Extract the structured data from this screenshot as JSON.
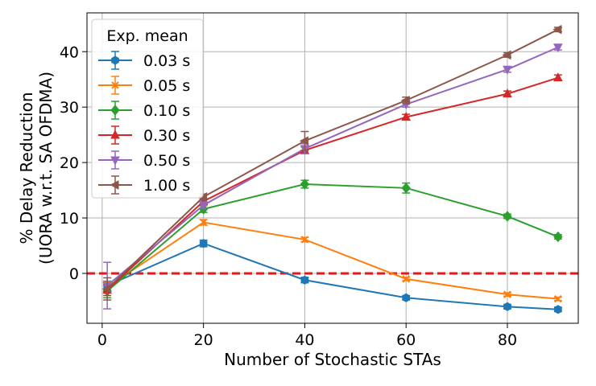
{
  "chart_data": {
    "type": "line",
    "title": "",
    "xlabel": "Number of Stochastic STAs",
    "ylabel_lines": [
      "% Delay Reduction",
      "(UORA w.r.t. SA OFDMA)"
    ],
    "xlim": [
      -3,
      94
    ],
    "ylim": [
      -9,
      47
    ],
    "xticks": [
      0,
      20,
      40,
      60,
      80
    ],
    "yticks": [
      0,
      10,
      20,
      30,
      40
    ],
    "grid": true,
    "reference_line": {
      "y": 0,
      "color": "#e5191c",
      "style": "dashed"
    },
    "legend": {
      "title": "Exp. mean",
      "location": "top-left"
    },
    "x": [
      1,
      20,
      40,
      60,
      80,
      90
    ],
    "series": [
      {
        "name": "0.03 s",
        "color": "#1f77b4",
        "marker": "hexagon",
        "values": [
          -2.2,
          5.4,
          -1.2,
          -4.4,
          -6.0,
          -6.5
        ],
        "errors": [
          0.8,
          0.6,
          0.5,
          0.4,
          0.4,
          0.4
        ]
      },
      {
        "name": "0.05 s",
        "color": "#ff7f0e",
        "marker": "x",
        "values": [
          -2.5,
          9.2,
          6.1,
          -1.0,
          -3.8,
          -4.6
        ],
        "errors": [
          1.0,
          0.5,
          0.4,
          0.3,
          0.3,
          0.3
        ]
      },
      {
        "name": "0.10 s",
        "color": "#2ca02c",
        "marker": "diamond",
        "values": [
          -3.2,
          11.6,
          16.1,
          15.4,
          10.3,
          6.6
        ],
        "errors": [
          1.2,
          0.6,
          0.7,
          0.9,
          0.4,
          0.4
        ]
      },
      {
        "name": "0.30 s",
        "color": "#d62728",
        "marker": "triangle-up",
        "values": [
          -3.0,
          13.0,
          22.2,
          28.2,
          32.4,
          35.3
        ],
        "errors": [
          1.0,
          0.5,
          0.6,
          0.5,
          0.5,
          0.5
        ]
      },
      {
        "name": "0.50 s",
        "color": "#9467bd",
        "marker": "triangle-down",
        "values": [
          -2.2,
          12.3,
          22.5,
          30.5,
          36.8,
          40.8
        ],
        "errors": [
          4.2,
          0.6,
          0.9,
          0.5,
          0.5,
          0.5
        ]
      },
      {
        "name": "1.00 s",
        "color": "#8c564b",
        "marker": "triangle-left",
        "values": [
          -2.8,
          13.8,
          23.9,
          31.2,
          39.4,
          44.0
        ],
        "errors": [
          2.0,
          0.5,
          1.7,
          0.6,
          0.4,
          0.4
        ]
      }
    ]
  }
}
